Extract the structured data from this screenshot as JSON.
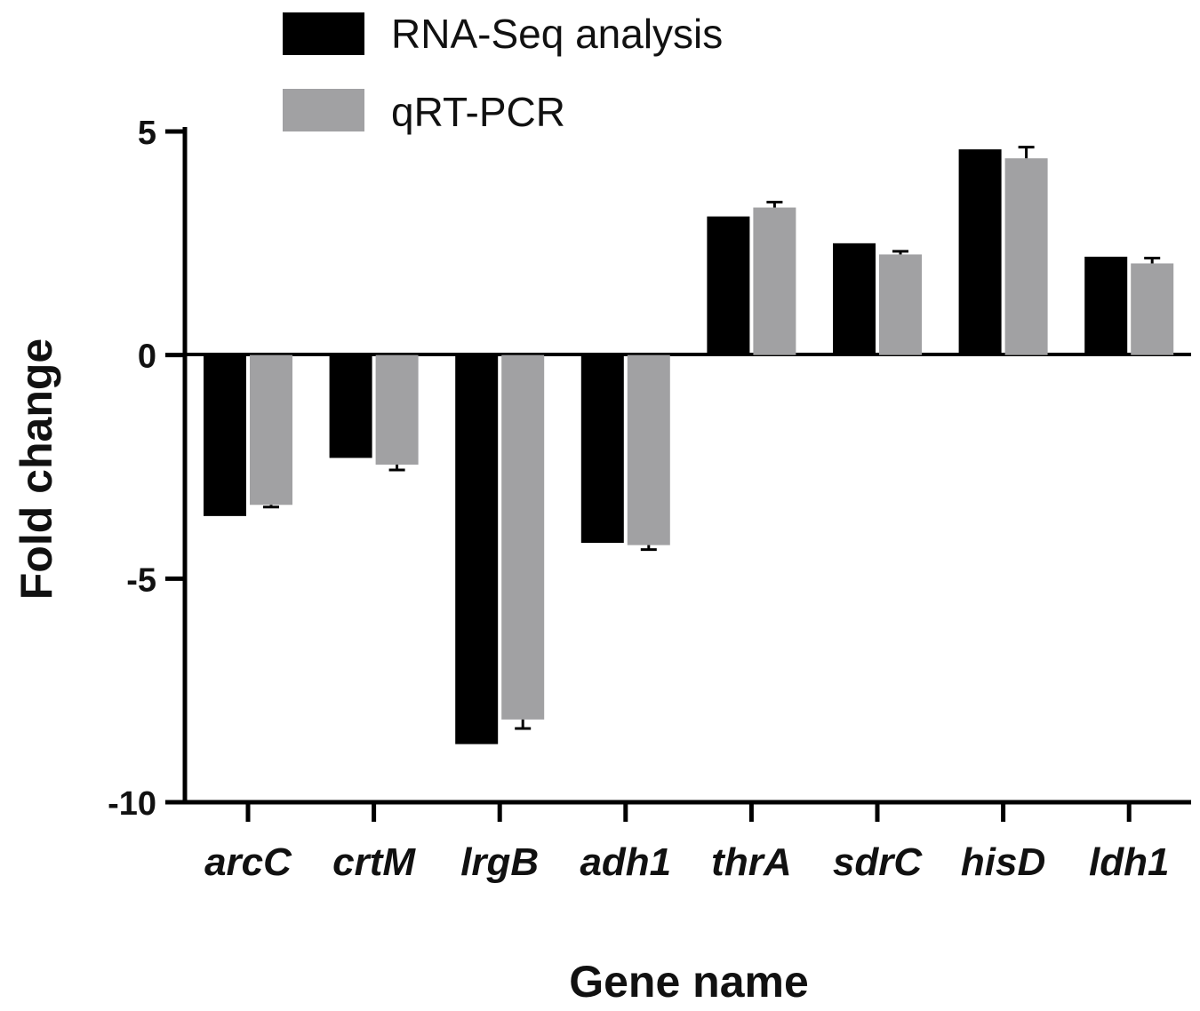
{
  "chart_data": {
    "type": "bar",
    "title": "",
    "xlabel": "Gene name",
    "ylabel": "Fold change",
    "categories": [
      "arcC",
      "crtM",
      "lrgB",
      "adh1",
      "thrA",
      "sdrC",
      "hisD",
      "ldh1"
    ],
    "series": [
      {
        "name": "RNA-Seq analysis",
        "color": "#000000",
        "values": [
          -3.6,
          -2.3,
          -8.7,
          -4.2,
          3.1,
          2.5,
          4.6,
          2.2
        ],
        "errors": [
          0,
          0,
          0,
          0,
          0,
          0,
          0,
          0
        ]
      },
      {
        "name": "qRT-PCR",
        "color": "#a1a1a3",
        "values": [
          -3.35,
          -2.45,
          -8.15,
          -4.25,
          3.3,
          2.25,
          4.4,
          2.05
        ],
        "errors": [
          0.05,
          0.12,
          0.2,
          0.1,
          0.12,
          0.07,
          0.25,
          0.12
        ]
      }
    ],
    "ylim": [
      -10,
      5
    ],
    "yticks": [
      5,
      0,
      -5,
      -10
    ],
    "ytick_labels": [
      "5",
      "0",
      "-5",
      "-10"
    ],
    "legend_position": "top",
    "grid": false
  }
}
